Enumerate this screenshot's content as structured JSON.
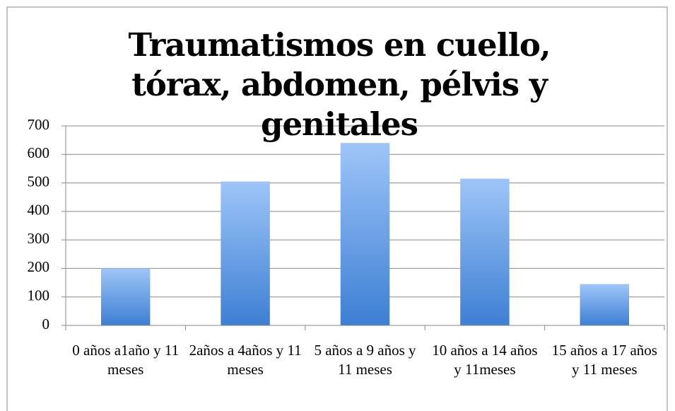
{
  "chart_data": {
    "type": "bar",
    "title": "Traumatismos en cuello, tórax, abdomen, pélvis y genitales",
    "categories": [
      "0 años a1año y 11 meses",
      "2años a 4años y 11 meses",
      "5 años a 9 años y 11 meses",
      "10 años a 14 años y 11meses",
      "15 años a 17 años y 11 meses"
    ],
    "values": [
      200,
      505,
      640,
      515,
      145
    ],
    "color": "#3d7fd3",
    "ylim": [
      0,
      700
    ],
    "yticks": [
      0,
      100,
      200,
      300,
      400,
      500,
      600,
      700
    ],
    "grid": true
  }
}
